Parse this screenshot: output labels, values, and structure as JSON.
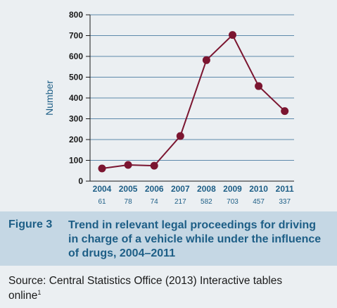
{
  "chart_data": {
    "type": "line",
    "x": [
      "2004",
      "2005",
      "2006",
      "2007",
      "2008",
      "2009",
      "2010",
      "2011"
    ],
    "values": [
      61,
      78,
      74,
      217,
      582,
      703,
      457,
      337
    ],
    "ylabel": "Number",
    "ylim": [
      0,
      800
    ],
    "yticks": [
      0,
      100,
      200,
      300,
      400,
      500,
      600,
      700,
      800
    ],
    "grid": "horizontal",
    "series_color": "#7b1530",
    "count_labels": [
      "61",
      "78",
      "74",
      "217",
      "582",
      "703",
      "457",
      "337"
    ]
  },
  "caption": {
    "figure_label": "Figure 3",
    "title": "Trend in relevant legal proceedings for driving in charge of a vehicle while under the influence of drugs, 2004–2011"
  },
  "source": {
    "text": "Source: Central Statistics Office (2013) Interactive tables online",
    "footnote_mark": "1"
  }
}
